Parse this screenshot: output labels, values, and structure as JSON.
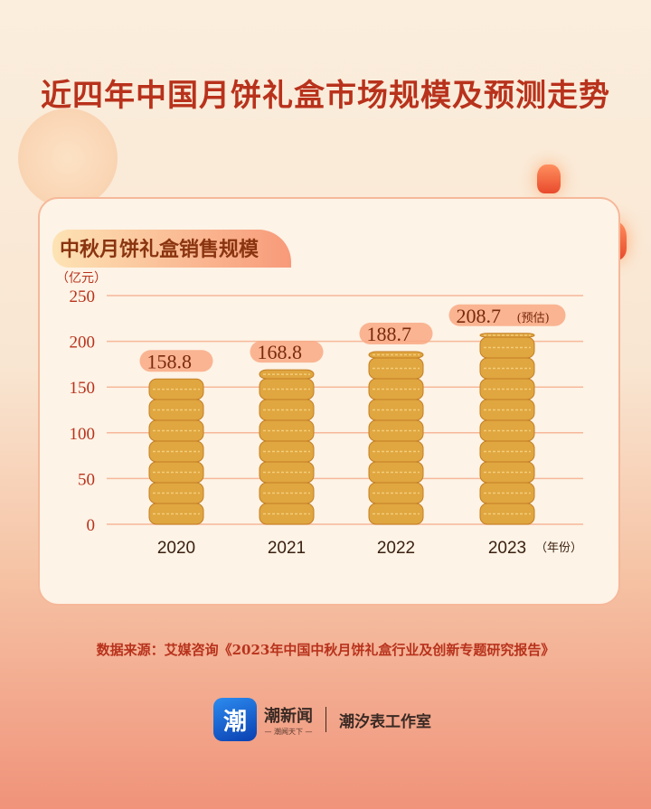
{
  "title": "近四年中国月饼礼盒市场规模及预测走势",
  "chart_data": {
    "type": "bar",
    "title": "中秋月饼礼盒销售规模",
    "ylabel": "（亿元）",
    "xlabel": "（年份）",
    "categories": [
      "2020",
      "2021",
      "2022",
      "2023"
    ],
    "values": [
      158.8,
      168.8,
      188.7,
      208.7
    ],
    "value_labels": [
      "158.8",
      "168.8",
      "188.7",
      "208.7"
    ],
    "annotations": {
      "2023": "(预估)"
    },
    "yticks": [
      "0",
      "50",
      "100",
      "150",
      "200",
      "250"
    ],
    "ylim": [
      0,
      250
    ],
    "grid": true,
    "colors": {
      "mooncake": "#e0a640",
      "grid": "#f6b89a",
      "label_bg": "#f9a882",
      "text": "#b8321c"
    }
  },
  "source": "数据来源：艾媒咨询《2023年中国中秋月饼礼盒行业及创新专题研究报告》",
  "footer": {
    "logo_char": "潮",
    "logo_sub": "NEWS",
    "brand": "潮新闻",
    "slogan": "— 潮闻天下 —",
    "studio": "潮汐表工作室"
  }
}
